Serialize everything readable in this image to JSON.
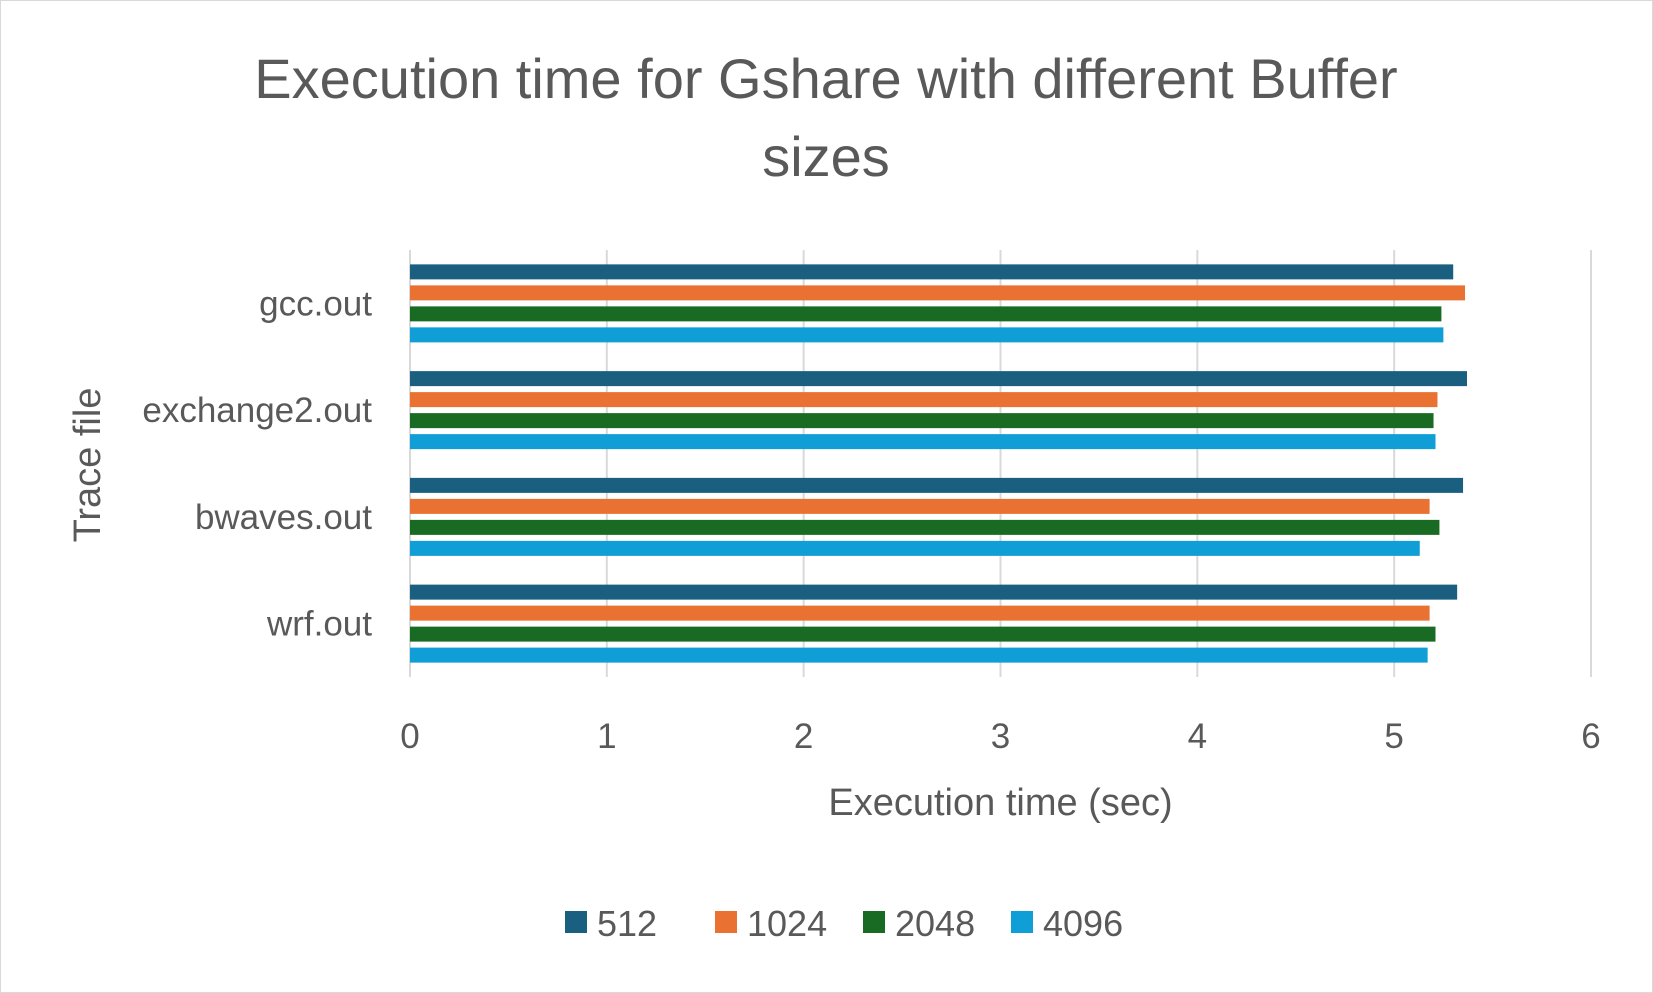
{
  "chart_data": {
    "type": "bar",
    "orientation": "horizontal",
    "title": "Execution time for Gshare with different Buffer sizes",
    "xlabel": "Execution time (sec)",
    "ylabel": "Trace file",
    "xlim": [
      0,
      6
    ],
    "xticks": [
      0,
      1,
      2,
      3,
      4,
      5,
      6
    ],
    "grid": "vertical",
    "legend_position": "bottom",
    "categories": [
      "gcc.out",
      "exchange2.out",
      "bwaves.out",
      "wrf.out"
    ],
    "series": [
      {
        "name": "512",
        "color": "#1a5e80",
        "values": [
          5.3,
          5.37,
          5.35,
          5.32
        ]
      },
      {
        "name": "1024",
        "color": "#e97132",
        "values": [
          5.36,
          5.22,
          5.18,
          5.18
        ]
      },
      {
        "name": "2048",
        "color": "#196b24",
        "values": [
          5.24,
          5.2,
          5.23,
          5.21
        ]
      },
      {
        "name": "4096",
        "color": "#0f9ed5",
        "values": [
          5.25,
          5.21,
          5.13,
          5.17
        ]
      }
    ]
  }
}
